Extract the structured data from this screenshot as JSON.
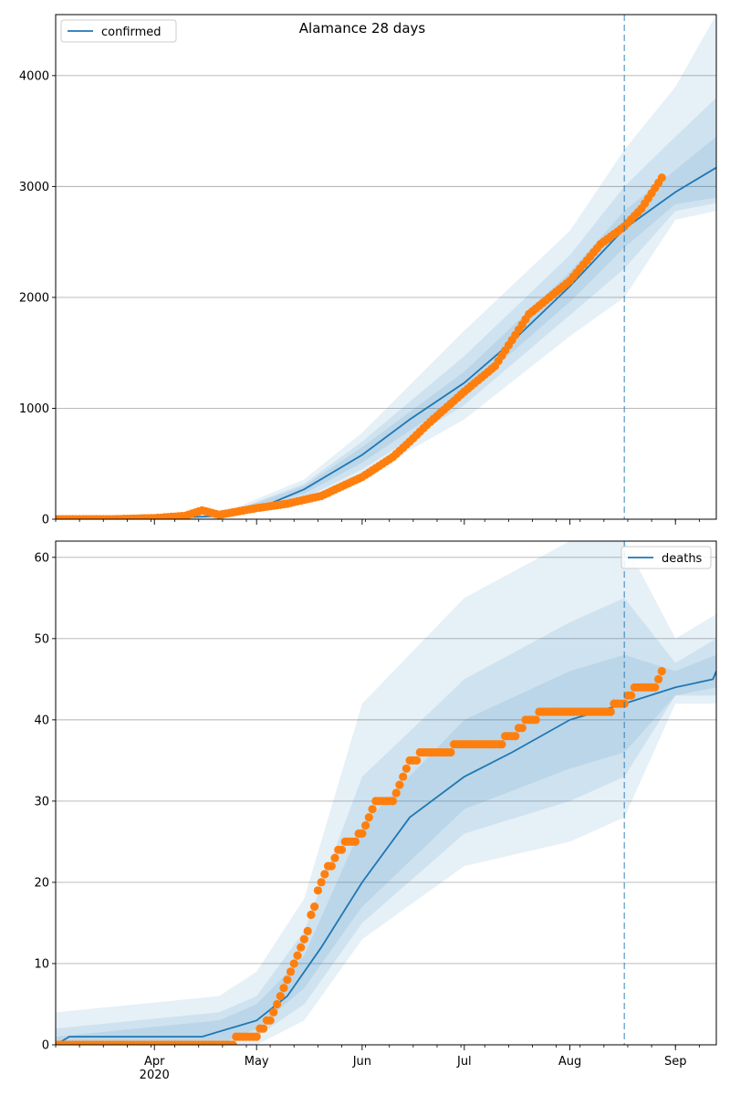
{
  "chart_data": [
    {
      "type": "line",
      "title": "Alamance 28 days",
      "xlabel": "",
      "ylabel": "",
      "x_range": [
        "2020-03-03",
        "2020-09-13"
      ],
      "ylim": [
        0,
        4550
      ],
      "y_ticks": [
        0,
        1000,
        2000,
        3000,
        4000
      ],
      "grid": "horizontal",
      "legend": {
        "position": "top-left",
        "entries": [
          "confirmed"
        ]
      },
      "forecast_start": "2020-08-17",
      "series": [
        {
          "name": "confirmed",
          "kind": "model-median",
          "x": [
            "2020-03-03",
            "2020-04-01",
            "2020-04-20",
            "2020-05-01",
            "2020-05-15",
            "2020-06-01",
            "2020-06-15",
            "2020-07-01",
            "2020-07-15",
            "2020-08-01",
            "2020-08-17",
            "2020-09-01",
            "2020-09-13"
          ],
          "y": [
            0,
            5,
            30,
            90,
            270,
            580,
            900,
            1230,
            1600,
            2100,
            2620,
            2950,
            3170
          ]
        },
        {
          "kind": "observed",
          "x": [
            "2020-03-03",
            "2020-03-20",
            "2020-04-01",
            "2020-04-10",
            "2020-04-15",
            "2020-04-20",
            "2020-05-01",
            "2020-05-10",
            "2020-05-20",
            "2020-06-01",
            "2020-06-10",
            "2020-06-15",
            "2020-06-20",
            "2020-07-01",
            "2020-07-10",
            "2020-07-20",
            "2020-08-01",
            "2020-08-10",
            "2020-08-17",
            "2020-08-22",
            "2020-08-28"
          ],
          "y": [
            0,
            0,
            10,
            30,
            80,
            40,
            100,
            140,
            210,
            380,
            560,
            700,
            850,
            1150,
            1380,
            1850,
            2150,
            2480,
            2640,
            2800,
            3080
          ]
        }
      ],
      "bands": [
        {
          "x": [
            "2020-03-03",
            "2020-04-20",
            "2020-05-15",
            "2020-06-01",
            "2020-07-01",
            "2020-08-01",
            "2020-08-17",
            "2020-09-01",
            "2020-09-13"
          ],
          "lower": [
            0,
            0,
            150,
            380,
            900,
            1650,
            2000,
            2700,
            2780
          ],
          "upper": [
            10,
            40,
            360,
            780,
            1700,
            2600,
            3330,
            3900,
            4550
          ]
        },
        {
          "x": [
            "2020-03-03",
            "2020-04-20",
            "2020-05-15",
            "2020-06-01",
            "2020-07-01",
            "2020-08-01",
            "2020-08-17",
            "2020-09-01",
            "2020-09-13"
          ],
          "lower": [
            0,
            10,
            190,
            450,
            1030,
            1840,
            2260,
            2780,
            2850
          ],
          "upper": [
            5,
            30,
            320,
            700,
            1470,
            2380,
            3000,
            3450,
            3800
          ]
        },
        {
          "x": [
            "2020-03-03",
            "2020-04-20",
            "2020-05-15",
            "2020-06-01",
            "2020-07-01",
            "2020-08-01",
            "2020-08-17",
            "2020-09-01",
            "2020-09-13"
          ],
          "lower": [
            0,
            20,
            230,
            510,
            1130,
            1960,
            2450,
            2840,
            2900
          ],
          "upper": [
            3,
            25,
            300,
            650,
            1330,
            2230,
            2780,
            3150,
            3450
          ]
        }
      ]
    },
    {
      "type": "line",
      "title": "",
      "xlabel": "",
      "ylabel": "",
      "x_range": [
        "2020-03-03",
        "2020-09-13"
      ],
      "ylim": [
        0,
        62
      ],
      "y_ticks": [
        0,
        10,
        20,
        30,
        40,
        50,
        60
      ],
      "x_ticks": [
        {
          "date": "2020-04-01",
          "label": "Apr",
          "sublabel": "2020"
        },
        {
          "date": "2020-05-01",
          "label": "May",
          "sublabel": ""
        },
        {
          "date": "2020-06-01",
          "label": "Jun",
          "sublabel": ""
        },
        {
          "date": "2020-07-01",
          "label": "Jul",
          "sublabel": ""
        },
        {
          "date": "2020-08-01",
          "label": "Aug",
          "sublabel": ""
        },
        {
          "date": "2020-09-01",
          "label": "Sep",
          "sublabel": ""
        }
      ],
      "grid": "horizontal",
      "legend": {
        "position": "top-right",
        "entries": [
          "deaths"
        ]
      },
      "forecast_start": "2020-08-17",
      "series": [
        {
          "name": "deaths",
          "kind": "model-median",
          "x": [
            "2020-03-03",
            "2020-03-07",
            "2020-04-15",
            "2020-05-01",
            "2020-05-10",
            "2020-05-20",
            "2020-06-01",
            "2020-06-15",
            "2020-07-01",
            "2020-07-15",
            "2020-08-01",
            "2020-08-17",
            "2020-09-01",
            "2020-09-12",
            "2020-09-13"
          ],
          "y": [
            0,
            1,
            1,
            3,
            6,
            12,
            20,
            28,
            33,
            36,
            40,
            42,
            44,
            45,
            46
          ]
        },
        {
          "kind": "observed",
          "x": [
            "2020-03-03",
            "2020-04-24",
            "2020-04-25",
            "2020-05-01",
            "2020-05-05",
            "2020-05-10",
            "2020-05-15",
            "2020-05-20",
            "2020-05-25",
            "2020-06-01",
            "2020-06-05",
            "2020-06-10",
            "2020-06-15",
            "2020-06-20",
            "2020-06-25",
            "2020-07-01",
            "2020-07-10",
            "2020-07-15",
            "2020-07-20",
            "2020-07-25",
            "2020-08-01",
            "2020-08-10",
            "2020-08-17",
            "2020-08-20",
            "2020-08-26",
            "2020-08-27",
            "2020-08-28"
          ],
          "y": [
            0,
            0,
            1,
            1,
            3,
            8,
            13,
            20,
            24,
            26,
            30,
            30,
            35,
            36,
            36,
            37,
            37,
            38,
            40,
            41,
            41,
            41,
            42,
            44,
            44,
            45,
            46
          ]
        }
      ],
      "bands": [
        {
          "x": [
            "2020-03-03",
            "2020-04-20",
            "2020-05-01",
            "2020-05-15",
            "2020-06-01",
            "2020-07-01",
            "2020-08-01",
            "2020-08-17",
            "2020-09-01",
            "2020-09-13"
          ],
          "lower": [
            0,
            0,
            0,
            3,
            13,
            22,
            25,
            28,
            42,
            42
          ],
          "upper": [
            4,
            6,
            9,
            18,
            42,
            55,
            62,
            62,
            50,
            53
          ]
        },
        {
          "x": [
            "2020-03-03",
            "2020-04-20",
            "2020-05-01",
            "2020-05-15",
            "2020-06-01",
            "2020-07-01",
            "2020-08-01",
            "2020-08-17",
            "2020-09-01",
            "2020-09-13"
          ],
          "lower": [
            0,
            0,
            1,
            5,
            15,
            26,
            30,
            33,
            43,
            43
          ],
          "upper": [
            2,
            4,
            6,
            14,
            33,
            45,
            52,
            55,
            47,
            50
          ]
        },
        {
          "x": [
            "2020-03-03",
            "2020-04-20",
            "2020-05-01",
            "2020-05-15",
            "2020-06-01",
            "2020-07-01",
            "2020-08-01",
            "2020-08-17",
            "2020-09-01",
            "2020-09-13"
          ],
          "lower": [
            0,
            0,
            2,
            7,
            17,
            29,
            34,
            36,
            43,
            44
          ],
          "upper": [
            1,
            3,
            5,
            11,
            27,
            40,
            46,
            48,
            46,
            48
          ]
        }
      ]
    }
  ],
  "colors": {
    "model_line": "#1f77b4",
    "observed": "#ff7f0e",
    "band": "#1f77b4",
    "grid": "#b0b0b0",
    "forecast_line": "#1f77b4"
  }
}
